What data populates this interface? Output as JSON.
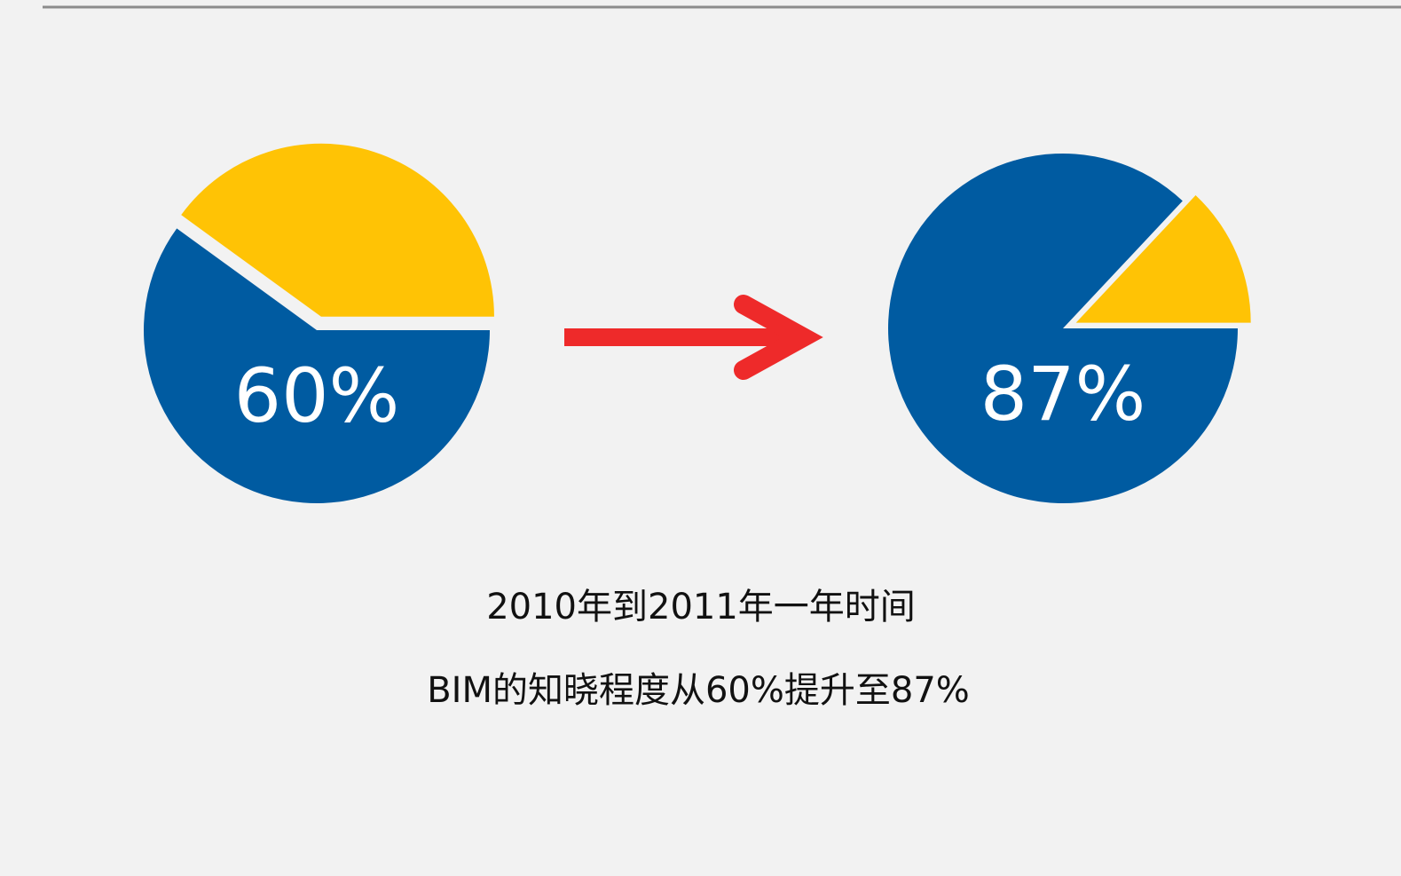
{
  "chart_data": [
    {
      "type": "pie",
      "values": [
        60,
        40
      ],
      "value_labels": [
        "60%",
        null
      ],
      "colors": [
        "#005ba1",
        "#ffc305"
      ],
      "explode": [
        0,
        1
      ]
    },
    {
      "type": "pie",
      "values": [
        87,
        13
      ],
      "value_labels": [
        "87%",
        null
      ],
      "colors": [
        "#005ba1",
        "#ffc305"
      ],
      "explode": [
        0,
        1
      ]
    }
  ],
  "caption": [
    "2010年到2011年一年时间",
    "BIM的知晓程度从60%提升至87%"
  ]
}
